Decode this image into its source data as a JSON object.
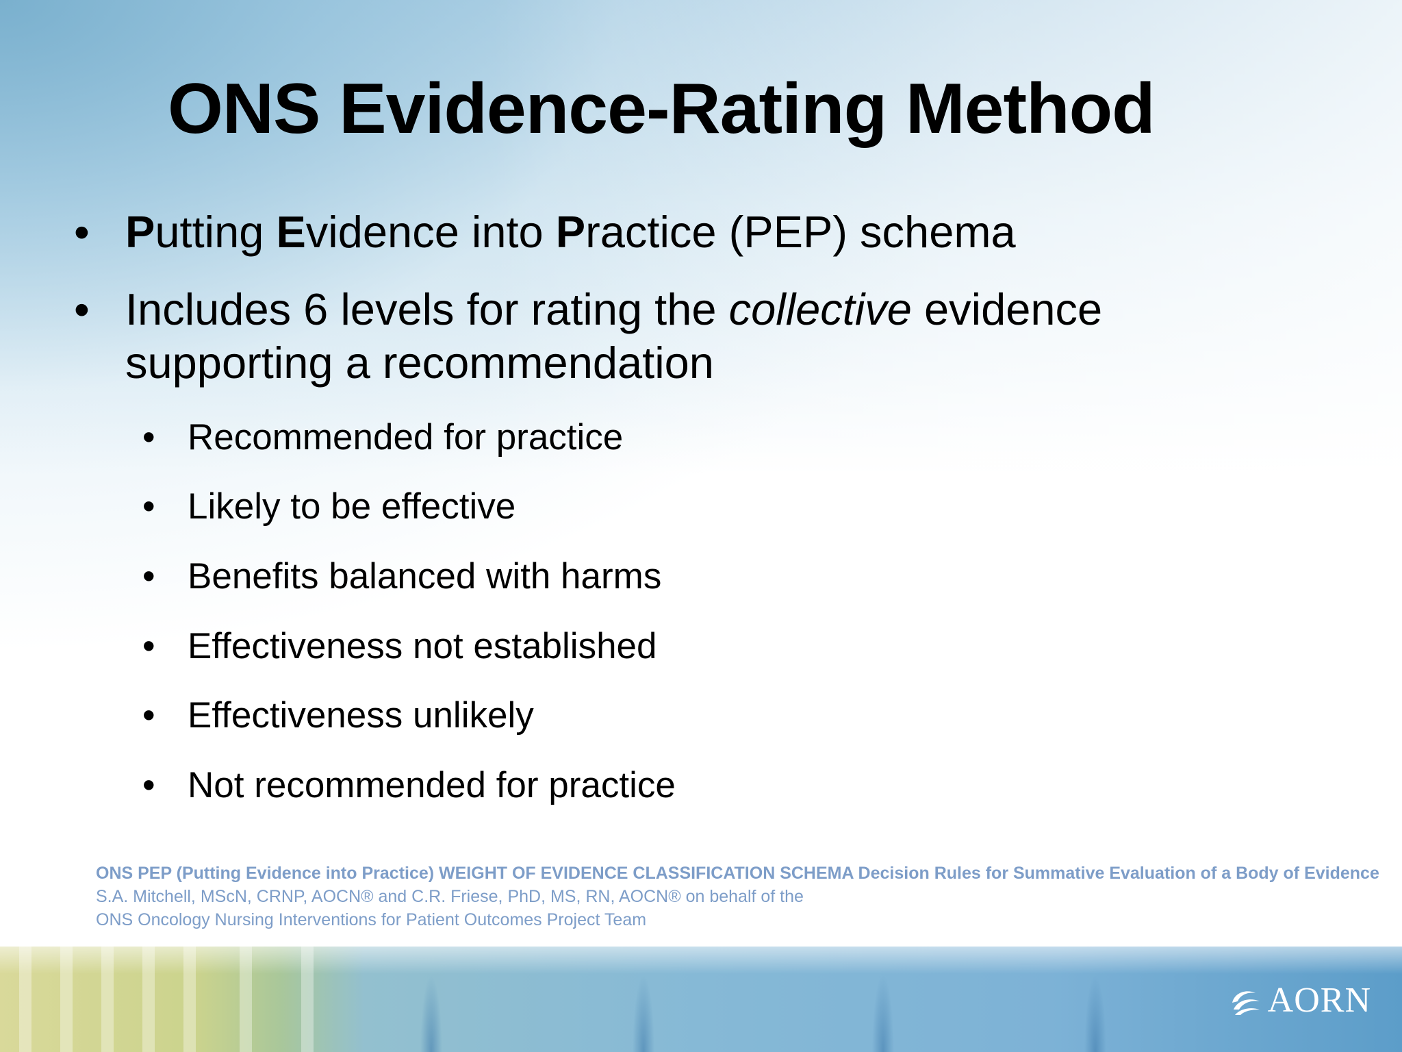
{
  "slide": {
    "title": "ONS Evidence-Rating Method",
    "bullet_char": "•",
    "bullets": [
      {
        "segments": [
          {
            "text": "P",
            "style": "bold"
          },
          {
            "text": "utting ",
            "style": "normal"
          },
          {
            "text": "E",
            "style": "bold"
          },
          {
            "text": "vidence into ",
            "style": "normal"
          },
          {
            "text": "P",
            "style": "bold"
          },
          {
            "text": "ractice (PEP) schema",
            "style": "normal"
          }
        ]
      },
      {
        "segments": [
          {
            "text": "Includes 6 levels for rating the ",
            "style": "normal"
          },
          {
            "text": "collective",
            "style": "italic"
          },
          {
            "text": " evidence supporting a recommendation",
            "style": "normal"
          }
        ],
        "sub_items": [
          "Recommended for practice",
          "Likely to be effective",
          "Benefits balanced with harms",
          "Effectiveness not established",
          "Effectiveness unlikely",
          "Not recommended for practice"
        ]
      }
    ],
    "citation": {
      "line1": "ONS PEP (Putting Evidence into Practice) WEIGHT OF EVIDENCE CLASSIFICATION SCHEMA Decision Rules for Summative Evaluation of a Body of Evidence",
      "line2": "S.A. Mitchell, MScN, CRNP, AOCN® and C.R. Friese, PhD, MS, RN, AOCN® on behalf of the",
      "line3": "ONS Oncology Nursing Interventions for Patient Outcomes Project Team"
    },
    "logo": {
      "text": "AORN",
      "icon": "aorn-logo-icon"
    },
    "colors": {
      "citation": "#7d9dc8",
      "title": "#000000",
      "footer_accent": "#5c9dc9"
    }
  }
}
